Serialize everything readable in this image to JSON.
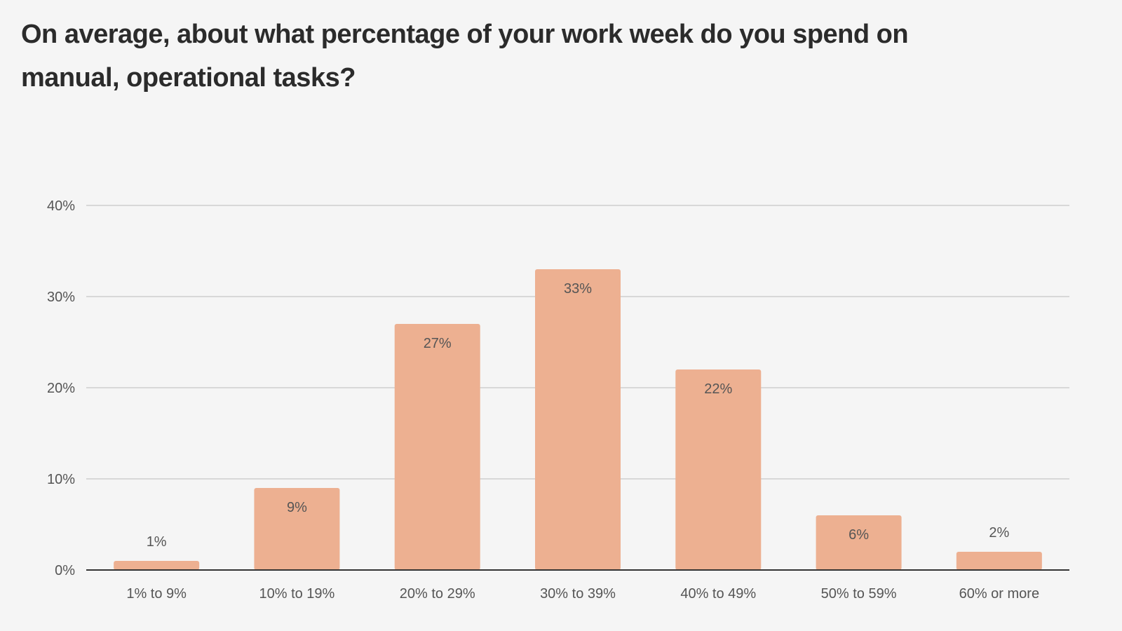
{
  "chart_data": {
    "type": "bar",
    "title": "On average, about what percentage of your work week do you spend on manual, operational tasks?",
    "xlabel": "",
    "ylabel": "",
    "categories": [
      "1% to 9%",
      "10% to 19%",
      "20% to 29%",
      "30% to 39%",
      "40% to 49%",
      "50% to 59%",
      "60% or more"
    ],
    "values": [
      1,
      9,
      27,
      33,
      22,
      6,
      2
    ],
    "data_labels": [
      "1%",
      "9%",
      "27%",
      "33%",
      "22%",
      "6%",
      "2%"
    ],
    "ylim": [
      0,
      40
    ],
    "yticks": [
      0,
      10,
      20,
      30,
      40
    ],
    "ytick_labels": [
      "0%",
      "10%",
      "20%",
      "30%",
      "40%"
    ],
    "grid": true,
    "legend": "none",
    "colors": {
      "bar": "#edb091",
      "grid": "#d8d8d8",
      "axis": "#333333",
      "text": "#555555",
      "background": "#f5f5f5"
    }
  }
}
